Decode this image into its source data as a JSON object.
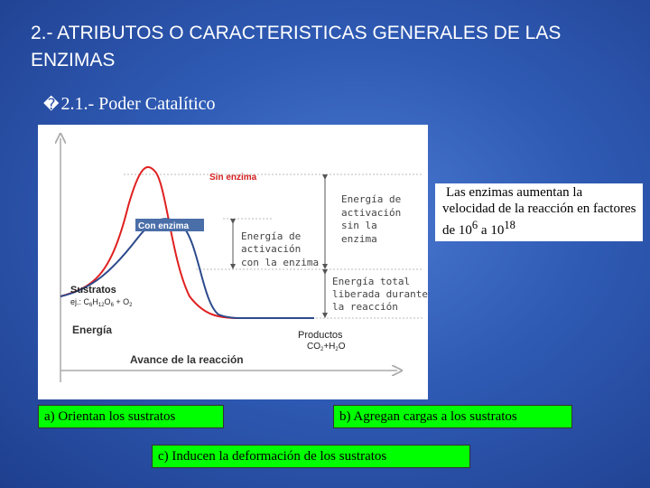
{
  "slide": {
    "title": "2.- ATRIBUTOS  O CARACTERISTICAS  GENERALES DE LAS ENZIMAS",
    "subtitle_bullet": "�",
    "subtitle": "2.1.- Poder Catalítico"
  },
  "diagram": {
    "label_sin_enzima": "Sin enzima",
    "label_con_enzima": "Con enzima",
    "label_activacion_sin_1": "Energía de",
    "label_activacion_sin_2": "activación",
    "label_activacion_sin_3": "sin la",
    "label_activacion_sin_4": "enzima",
    "label_activacion_con_1": "Energía de",
    "label_activacion_con_2": "activación",
    "label_activacion_con_3": "con la enzima",
    "label_total_1": "Energía total",
    "label_total_2": "liberada durante",
    "label_total_3": "la reacción",
    "label_sustratos": "Sustratos",
    "label_sustratos_ej": "ej.: C",
    "label_sustratos_sub_6": "6",
    "label_sustratos_h": "H",
    "label_sustratos_sub_12": "12",
    "label_sustratos_o": "O",
    "label_sustratos_sub_6b": "6",
    "label_sustratos_plus_o": " + O",
    "label_sustratos_sub_2": "2",
    "label_productos": "Productos",
    "label_productos_co": "CO",
    "label_productos_sub_2": "2",
    "label_productos_h": "+H",
    "label_productos_sub_2b": "2",
    "label_productos_o": "O",
    "label_energia": "Energía",
    "label_avance": "Avance de la reacción",
    "colors": {
      "sin_enzima": "#e02020",
      "con_enzima": "#2c4a8c",
      "label_red": "#d42020",
      "label_blue": "#ffffff"
    }
  },
  "note": {
    "text_1": "Las enzimas aumentan la velocidad de la reacción en factores de 10",
    "exp_1": "6",
    "text_2": " a 10",
    "exp_2": "18"
  },
  "boxes": {
    "a": "a) Orientan los sustratos",
    "b": "b) Agregan cargas a los sustratos",
    "c": "c) Inducen la deformación de  los sustratos"
  }
}
